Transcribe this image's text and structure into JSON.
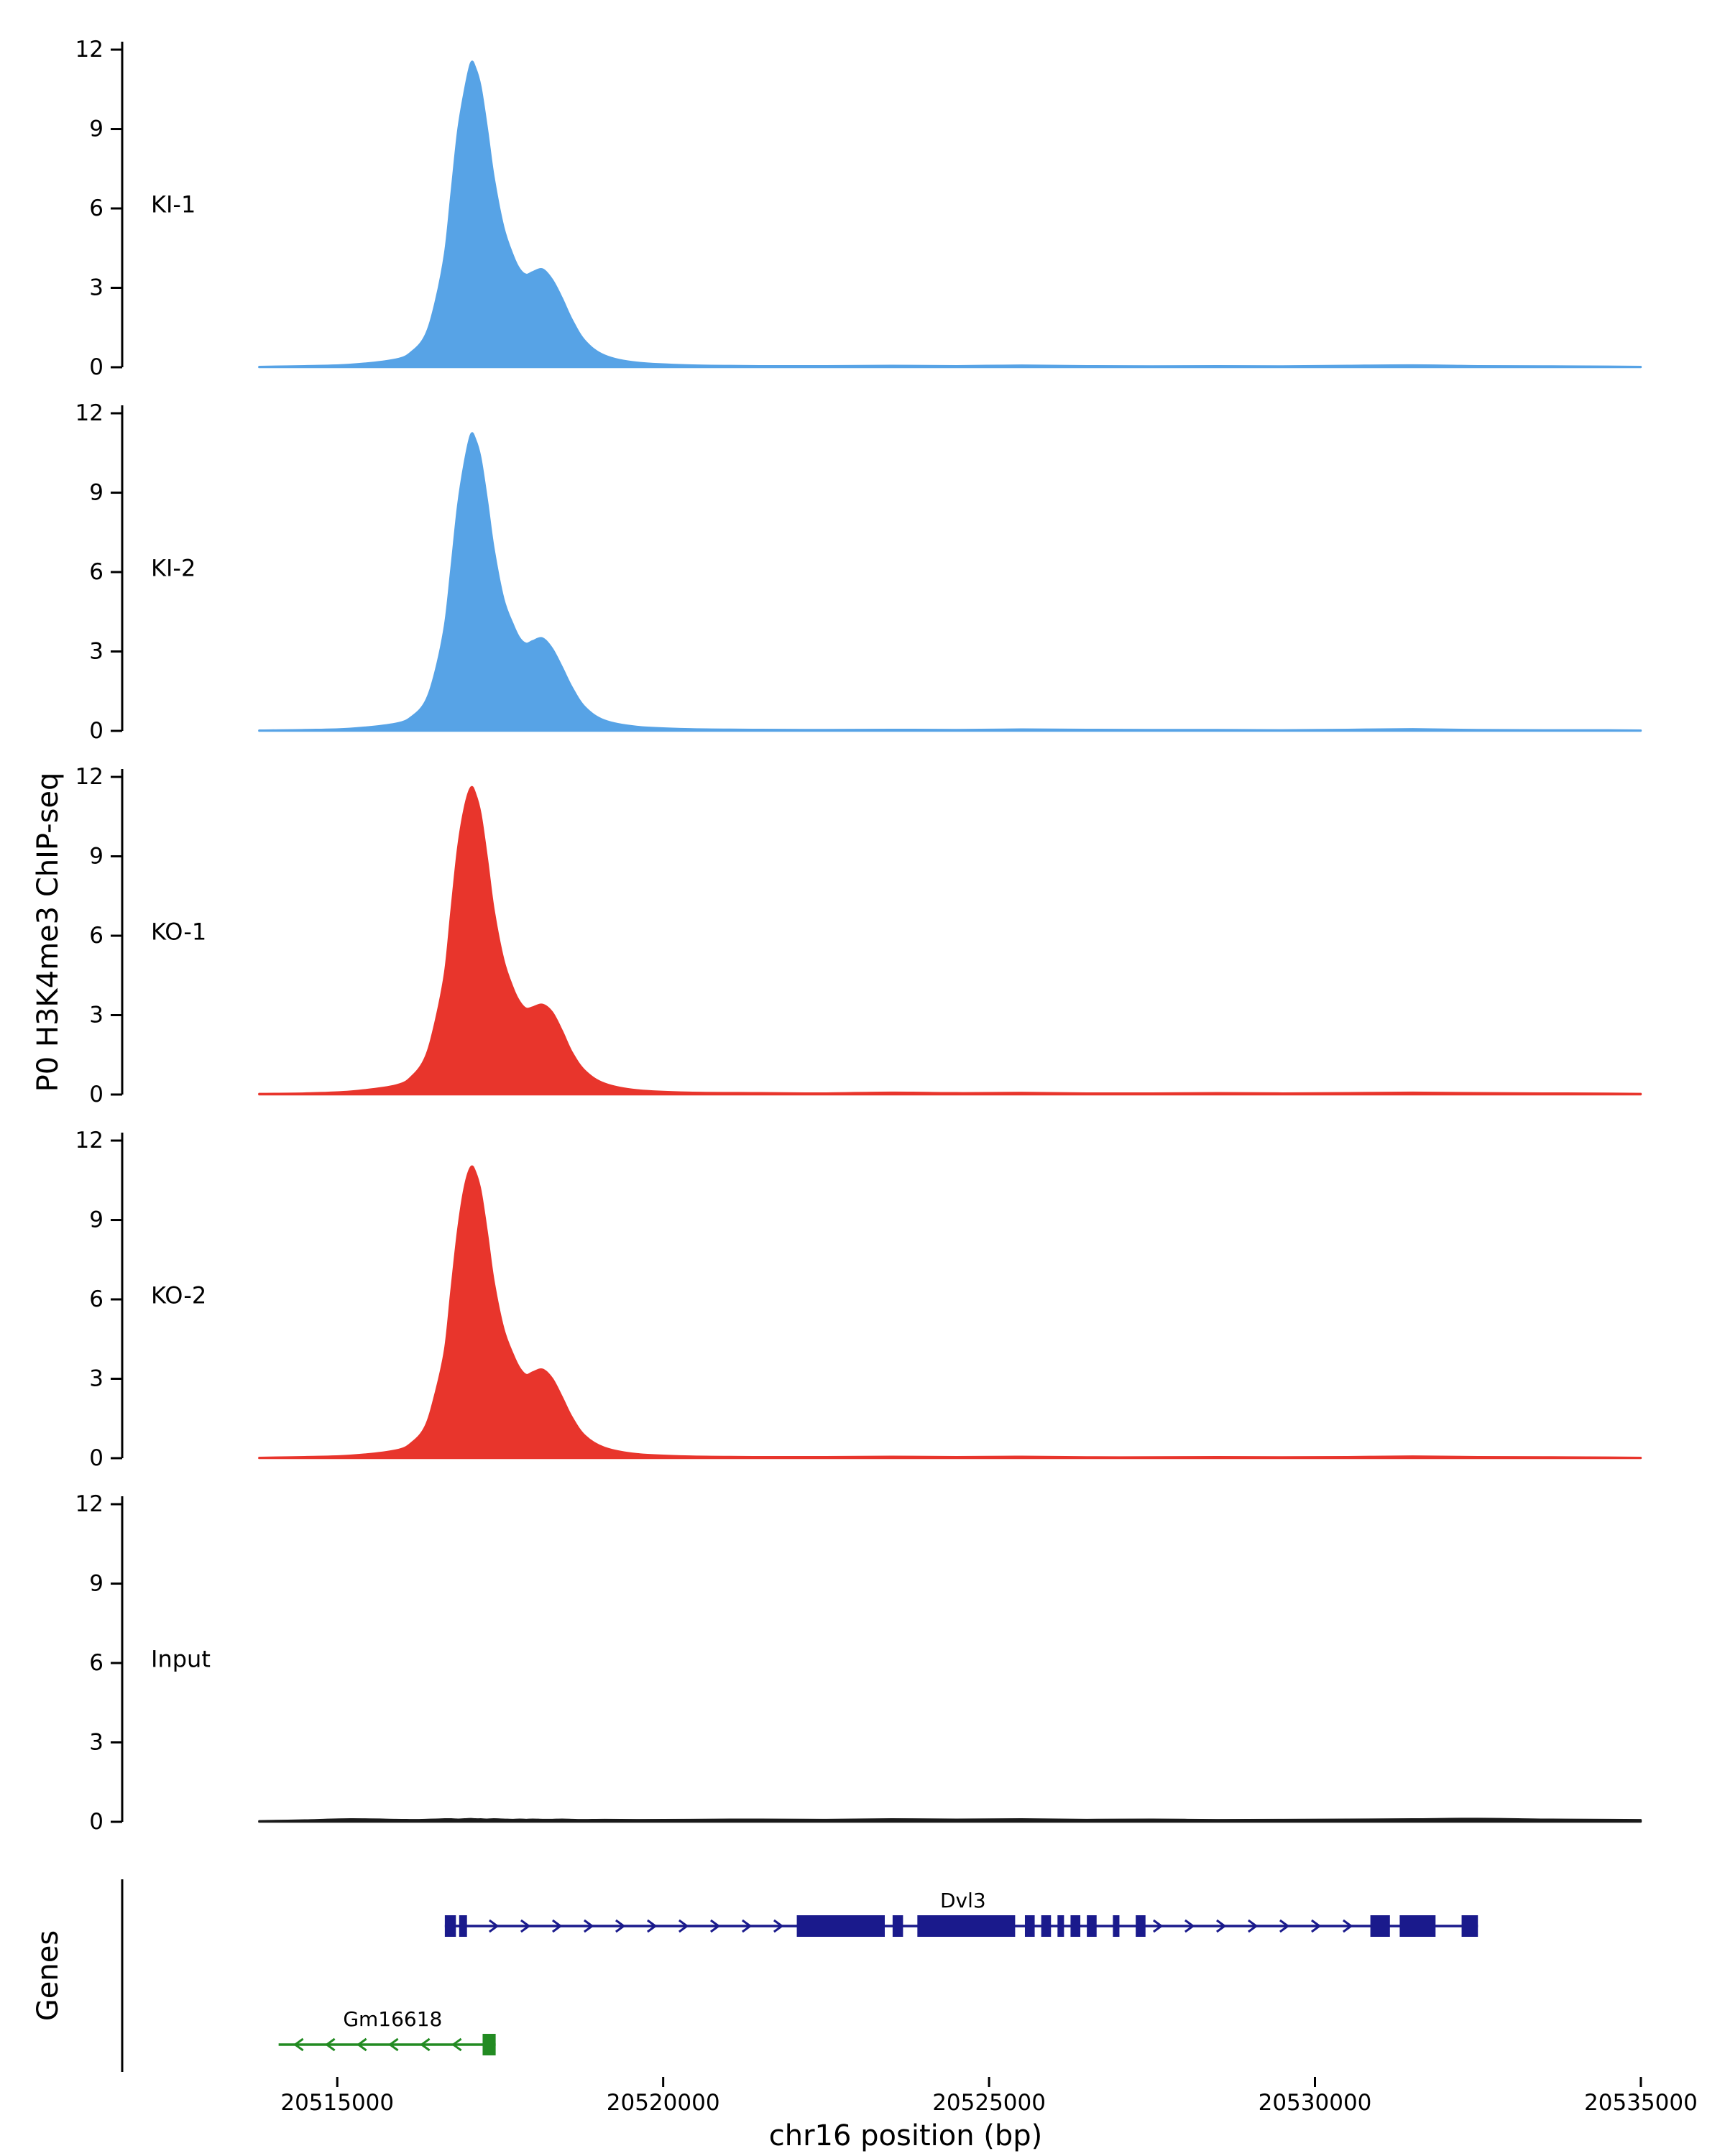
{
  "figure": {
    "y_axis_label": "P0 H3K4me3 ChIP-seq",
    "genes_axis_label": "Genes",
    "x_axis_label": "chr16 position (bp)"
  },
  "chart_data": {
    "type": "area",
    "title": "",
    "xlabel": "chr16 position (bp)",
    "ylabel": "P0 H3K4me3 ChIP-seq",
    "x_domain": [
      20511700,
      20535100
    ],
    "ylim": [
      0,
      12.3
    ],
    "y_ticks": [
      0,
      3,
      6,
      9,
      12
    ],
    "x_ticks": [
      20515000,
      20520000,
      20525000,
      20530000,
      20535000
    ],
    "x_tick_labels": [
      "20515000",
      "20520000",
      "20525000",
      "20530000",
      "20535000"
    ],
    "grid": false,
    "legend": "none",
    "x": [
      20513800,
      20514500,
      20515200,
      20515900,
      20516150,
      20516350,
      20516500,
      20516650,
      20516750,
      20516850,
      20516950,
      20517050,
      20517120,
      20517200,
      20517300,
      20517400,
      20517550,
      20517700,
      20517800,
      20517900,
      20518000,
      20518150,
      20518300,
      20518450,
      20518600,
      20518800,
      20519100,
      20519600,
      20520400,
      20521500,
      20522500,
      20523500,
      20524500,
      20525500,
      20526500,
      20527500,
      20528500,
      20529500,
      20530500,
      20531500,
      20532500,
      20533500,
      20534500,
      20535000
    ],
    "tracks": [
      {
        "name": "KI-1",
        "color": "#57A3E6",
        "values": [
          0.02,
          0.05,
          0.1,
          0.3,
          0.6,
          1.2,
          2.4,
          4.3,
          6.6,
          8.9,
          10.4,
          11.5,
          11.3,
          10.6,
          9.0,
          7.2,
          5.3,
          4.2,
          3.7,
          3.5,
          3.6,
          3.7,
          3.3,
          2.6,
          1.8,
          1.0,
          0.45,
          0.18,
          0.08,
          0.05,
          0.05,
          0.06,
          0.05,
          0.07,
          0.05,
          0.04,
          0.05,
          0.04,
          0.06,
          0.08,
          0.05,
          0.04,
          0.03,
          0.02
        ]
      },
      {
        "name": "KI-2",
        "color": "#57A3E6",
        "values": [
          0.02,
          0.04,
          0.09,
          0.28,
          0.55,
          1.1,
          2.2,
          4.0,
          6.2,
          8.5,
          10.1,
          11.2,
          11.0,
          10.3,
          8.7,
          6.9,
          5.0,
          4.0,
          3.5,
          3.3,
          3.4,
          3.5,
          3.1,
          2.4,
          1.65,
          0.9,
          0.4,
          0.16,
          0.07,
          0.05,
          0.04,
          0.05,
          0.04,
          0.06,
          0.05,
          0.04,
          0.04,
          0.03,
          0.05,
          0.07,
          0.04,
          0.03,
          0.03,
          0.02
        ]
      },
      {
        "name": "KO-1",
        "color": "#E8352C",
        "values": [
          0.03,
          0.05,
          0.12,
          0.35,
          0.7,
          1.4,
          2.7,
          4.6,
          7.0,
          9.3,
          10.8,
          11.6,
          11.35,
          10.6,
          8.9,
          7.0,
          5.1,
          4.0,
          3.5,
          3.25,
          3.3,
          3.4,
          3.1,
          2.4,
          1.6,
          0.9,
          0.42,
          0.17,
          0.08,
          0.06,
          0.05,
          0.08,
          0.06,
          0.07,
          0.05,
          0.05,
          0.06,
          0.05,
          0.06,
          0.08,
          0.06,
          0.05,
          0.04,
          0.03
        ]
      },
      {
        "name": "KO-2",
        "color": "#E8352C",
        "values": [
          0.02,
          0.05,
          0.1,
          0.3,
          0.6,
          1.2,
          2.4,
          4.1,
          6.4,
          8.6,
          10.2,
          11.0,
          10.8,
          10.1,
          8.5,
          6.7,
          4.9,
          3.9,
          3.4,
          3.15,
          3.25,
          3.35,
          3.0,
          2.3,
          1.55,
          0.85,
          0.4,
          0.16,
          0.07,
          0.05,
          0.05,
          0.06,
          0.05,
          0.06,
          0.04,
          0.04,
          0.05,
          0.04,
          0.05,
          0.07,
          0.05,
          0.04,
          0.03,
          0.02
        ]
      },
      {
        "name": "Input",
        "color": "#1A1A1A",
        "values": [
          0.03,
          0.06,
          0.1,
          0.08,
          0.07,
          0.08,
          0.09,
          0.1,
          0.1,
          0.09,
          0.1,
          0.11,
          0.1,
          0.1,
          0.09,
          0.1,
          0.09,
          0.08,
          0.09,
          0.08,
          0.09,
          0.08,
          0.08,
          0.09,
          0.08,
          0.07,
          0.08,
          0.07,
          0.08,
          0.09,
          0.08,
          0.1,
          0.09,
          0.1,
          0.08,
          0.09,
          0.07,
          0.08,
          0.09,
          0.1,
          0.12,
          0.09,
          0.08,
          0.07
        ]
      }
    ],
    "genes": {
      "items": [
        {
          "name": "Dvl3",
          "color": "#1A1A8C",
          "strand": "+",
          "start": 20516650,
          "end": 20532500,
          "label_pos": 20524600,
          "exons": [
            [
              20516650,
              20516820
            ],
            [
              20516870,
              20516990
            ],
            [
              20522050,
              20523400
            ],
            [
              20523520,
              20523680
            ],
            [
              20523900,
              20525400
            ],
            [
              20525550,
              20525700
            ],
            [
              20525800,
              20525950
            ],
            [
              20526050,
              20526150
            ],
            [
              20526250,
              20526400
            ],
            [
              20526500,
              20526650
            ],
            [
              20526900,
              20527000
            ],
            [
              20527250,
              20527400
            ],
            [
              20530850,
              20531150
            ],
            [
              20531300,
              20531850
            ],
            [
              20532250,
              20532500
            ]
          ]
        },
        {
          "name": "Gm16618",
          "color": "#228B22",
          "strand": "-",
          "start": 20514100,
          "end": 20517430,
          "label_pos": 20515850,
          "exons": [
            [
              20517230,
              20517430
            ]
          ]
        }
      ]
    }
  }
}
